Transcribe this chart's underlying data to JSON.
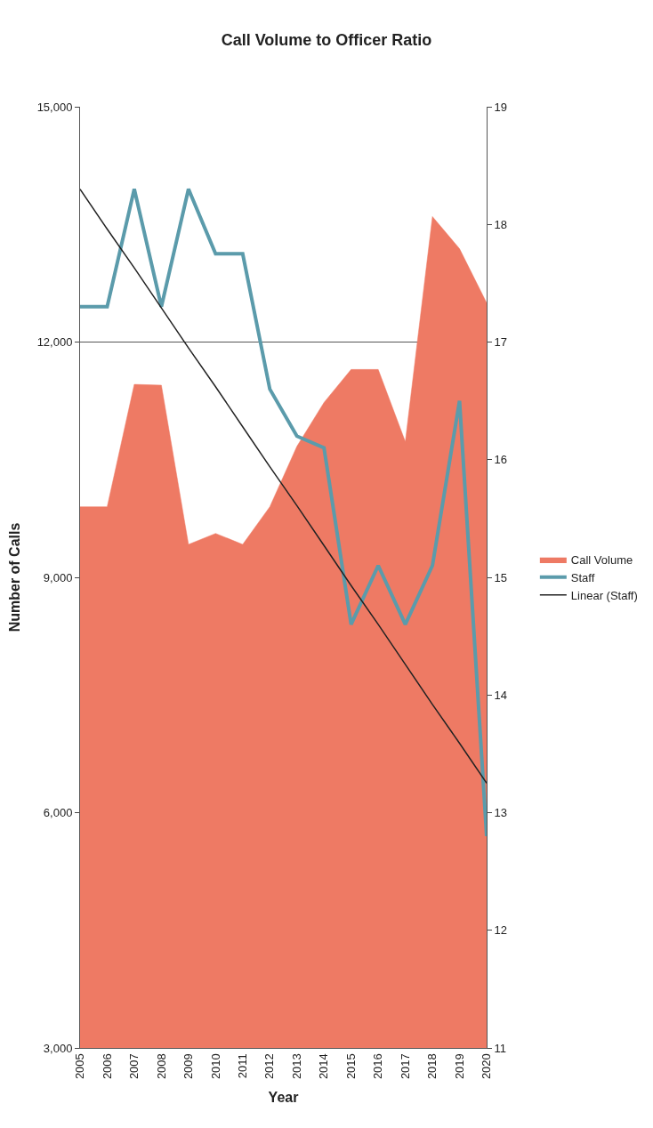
{
  "chart_data": {
    "type": "area",
    "title": "Call Volume to Officer Ratio",
    "xlabel": "Year",
    "ylabel": "Number of Calls",
    "categories": [
      "2005",
      "2006",
      "2007",
      "2008",
      "2009",
      "2010",
      "2011",
      "2012",
      "2013",
      "2014",
      "2015",
      "2016",
      "2017",
      "2018",
      "2019",
      "2020"
    ],
    "series": [
      {
        "name": "Call Volume",
        "color": "#ee7a64",
        "values": [
          9900,
          9900,
          11460,
          11450,
          9420,
          9560,
          9420,
          9900,
          10670,
          11230,
          11650,
          11650,
          10730,
          13600,
          13190,
          12500
        ]
      },
      {
        "name": "Staff",
        "type": "line",
        "axis": "y2",
        "color": "#5b9bab",
        "values": [
          17.3,
          17.3,
          18.3,
          17.3,
          18.3,
          17.75,
          17.75,
          16.6,
          16.2,
          16.1,
          14.6,
          15.1,
          14.6,
          15.1,
          16.5,
          12.8
        ]
      },
      {
        "name": "Linear (Staff)",
        "type": "line",
        "axis": "y2",
        "color": "#222222",
        "values": [
          18.3,
          17.96,
          17.63,
          17.29,
          16.95,
          16.62,
          16.28,
          15.94,
          15.61,
          15.27,
          14.93,
          14.6,
          14.26,
          13.92,
          13.59,
          13.25
        ]
      }
    ],
    "ylim": [
      3000,
      15000
    ],
    "yticks": [
      {
        "value": 3000,
        "label": "3,000"
      },
      {
        "value": 6000,
        "label": "6,000"
      },
      {
        "value": 9000,
        "label": "9,000"
      },
      {
        "value": 12000,
        "label": "12,000"
      },
      {
        "value": 15000,
        "label": "15,000"
      }
    ],
    "y2lim": [
      11,
      19
    ],
    "y2ticks": [
      11,
      12,
      13,
      14,
      15,
      16,
      17,
      18,
      19
    ],
    "grid": "y",
    "legend": "right"
  }
}
